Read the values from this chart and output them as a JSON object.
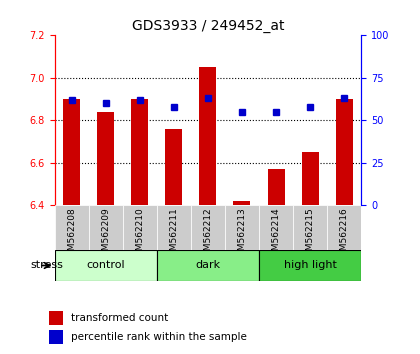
{
  "title": "GDS3933 / 249452_at",
  "samples": [
    "GSM562208",
    "GSM562209",
    "GSM562210",
    "GSM562211",
    "GSM562212",
    "GSM562213",
    "GSM562214",
    "GSM562215",
    "GSM562216"
  ],
  "transformed_count": [
    6.9,
    6.84,
    6.9,
    6.76,
    7.05,
    6.42,
    6.57,
    6.65,
    6.9
  ],
  "percentile_rank": [
    62,
    60,
    62,
    58,
    63,
    55,
    55,
    58,
    63
  ],
  "ylim_left": [
    6.4,
    7.2
  ],
  "ylim_right": [
    0,
    100
  ],
  "yticks_left": [
    6.4,
    6.6,
    6.8,
    7.0,
    7.2
  ],
  "yticks_right": [
    0,
    25,
    50,
    75,
    100
  ],
  "bar_color": "#cc0000",
  "dot_color": "#0000cc",
  "groups": [
    {
      "label": "control",
      "start": 0,
      "end": 3,
      "color": "#ccffcc"
    },
    {
      "label": "dark",
      "start": 3,
      "end": 6,
      "color": "#88ee88"
    },
    {
      "label": "high light",
      "start": 6,
      "end": 9,
      "color": "#44cc44"
    }
  ],
  "stress_label": "stress",
  "legend_items": [
    {
      "label": "transformed count",
      "color": "#cc0000"
    },
    {
      "label": "percentile rank within the sample",
      "color": "#0000cc"
    }
  ],
  "background_color": "#ffffff",
  "plot_bg": "#ffffff"
}
